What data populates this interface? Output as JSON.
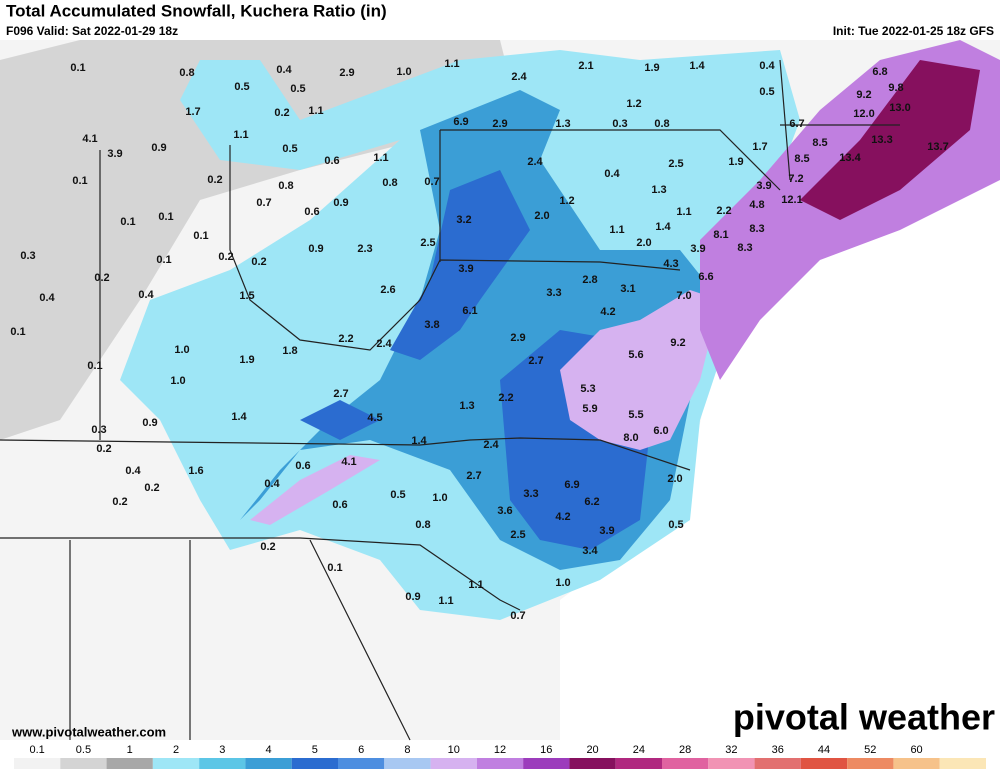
{
  "header": {
    "title": "Total Accumulated Snowfall, Kuchera Ratio (in)",
    "valid": "F096 Valid: Sat 2022-01-29 18z",
    "init": "Init: Tue 2022-01-25 18z GFS"
  },
  "map": {
    "labels": [
      "0.1",
      "0.8",
      "0.4",
      "2.9",
      "1.0",
      "1.1",
      "2.4",
      "2.1",
      "1.9",
      "1.4",
      "0.4",
      "6.8",
      "0.5",
      "0.5",
      "0.5",
      "9.2",
      "9.8",
      "1.7",
      "0.2",
      "1.1",
      "1.2",
      "12.0",
      "13.0",
      "1.1",
      "6.9",
      "2.9",
      "1.3",
      "0.3",
      "0.8",
      "6.7",
      "4.1",
      "0.9",
      "0.5",
      "1.7",
      "8.5",
      "13.3",
      "3.9",
      "0.6",
      "1.1",
      "2.4",
      "2.5",
      "1.9",
      "8.5",
      "13.4",
      "13.7",
      "0.1",
      "0.2",
      "0.8",
      "0.8",
      "0.7",
      "0.4",
      "3.9",
      "7.2",
      "0.7",
      "0.9",
      "1.2",
      "1.3",
      "4.8",
      "12.1",
      "0.1",
      "0.1",
      "0.6",
      "3.2",
      "2.0",
      "1.1",
      "2.2",
      "1.4",
      "0.1",
      "1.1",
      "8.3",
      "0.3",
      "0.1",
      "0.2",
      "0.2",
      "0.9",
      "2.3",
      "2.5",
      "2.0",
      "3.9",
      "8.1",
      "8.3",
      "0.2",
      "3.9",
      "2.8",
      "4.3",
      "6.6",
      "0.4",
      "0.4",
      "1.5",
      "2.6",
      "3.3",
      "3.1",
      "7.0",
      "0.1",
      "6.1",
      "4.2",
      "3.8",
      "2.2",
      "2.9",
      "9.2",
      "1.0",
      "2.4",
      "5.6",
      "0.1",
      "1.9",
      "1.8",
      "2.7",
      "1.0",
      "5.3",
      "2.7",
      "2.2",
      "5.9",
      "1.4",
      "4.5",
      "1.3",
      "5.5",
      "0.9",
      "0.3",
      "6.0",
      "8.0",
      "0.2",
      "1.4",
      "2.4",
      "4.1",
      "0.6",
      "0.4",
      "1.6",
      "2.7",
      "2.0",
      "6.9",
      "0.4",
      "0.2",
      "0.5",
      "1.0",
      "3.3",
      "0.2",
      "0.6",
      "6.2",
      "3.6",
      "4.2",
      "0.5",
      "0.8",
      "3.9",
      "2.5",
      "0.2",
      "3.4",
      "0.1",
      "1.1",
      "1.0",
      "0.9",
      "1.1",
      "0.7"
    ]
  },
  "footer": {
    "website": "www.pivotalweather.com",
    "logo": "pivotal weather"
  },
  "legend": {
    "ticks": [
      "0.1",
      "0.5",
      "1",
      "2",
      "3",
      "4",
      "5",
      "6",
      "8",
      "10",
      "12",
      "16",
      "20",
      "24",
      "28",
      "32",
      "36",
      "44",
      "52",
      "60"
    ],
    "colors": [
      "#f2f2f2",
      "#d4d4d4",
      "#a8a8a8",
      "#9ee6f6",
      "#5cc6e6",
      "#3b9ed6",
      "#2b6cd0",
      "#4d8ee0",
      "#a8c8f2",
      "#d6b2f0",
      "#c07fe0",
      "#9c3cbc",
      "#86105e",
      "#b0287f",
      "#e062a0",
      "#f193b4",
      "#e27070",
      "#e05442",
      "#ed8a62",
      "#f6c28a",
      "#fbe6b6"
    ]
  }
}
